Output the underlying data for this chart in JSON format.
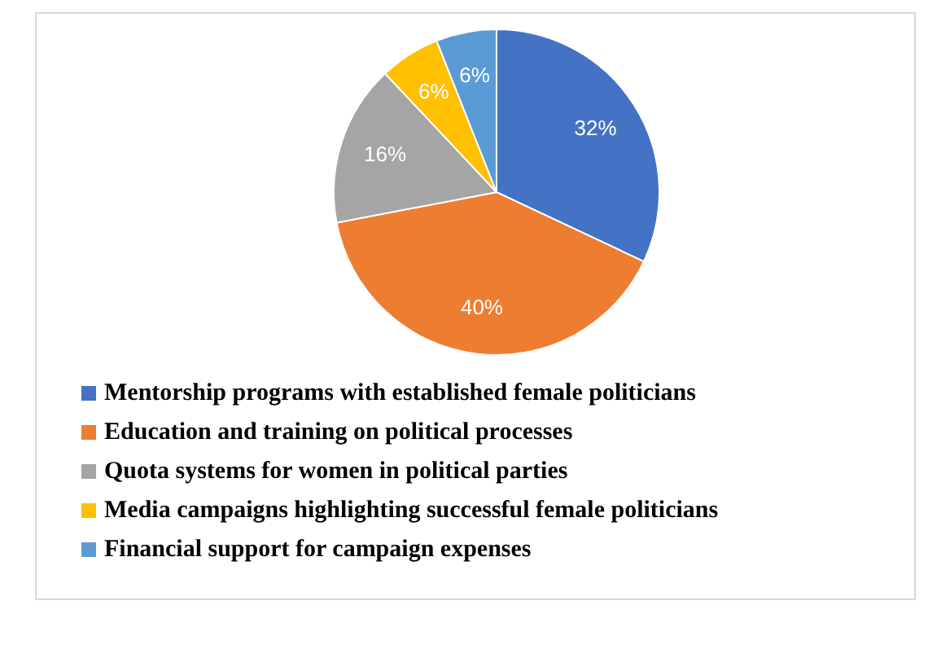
{
  "chart_data": {
    "type": "pie",
    "categories": [
      "Mentorship programs with established female politicians",
      "Education and training on political processes",
      "Quota systems for women in political parties",
      "Media campaigns highlighting successful female politicians",
      "Financial support for campaign expenses"
    ],
    "values": [
      32,
      40,
      16,
      6,
      6
    ],
    "value_labels": [
      "32%",
      "40%",
      "16%",
      "6%",
      "6%"
    ],
    "colors": [
      "#4472c4",
      "#ed7d31",
      "#a5a5a5",
      "#ffc000",
      "#5b9bd5"
    ],
    "legend": "bottom"
  }
}
